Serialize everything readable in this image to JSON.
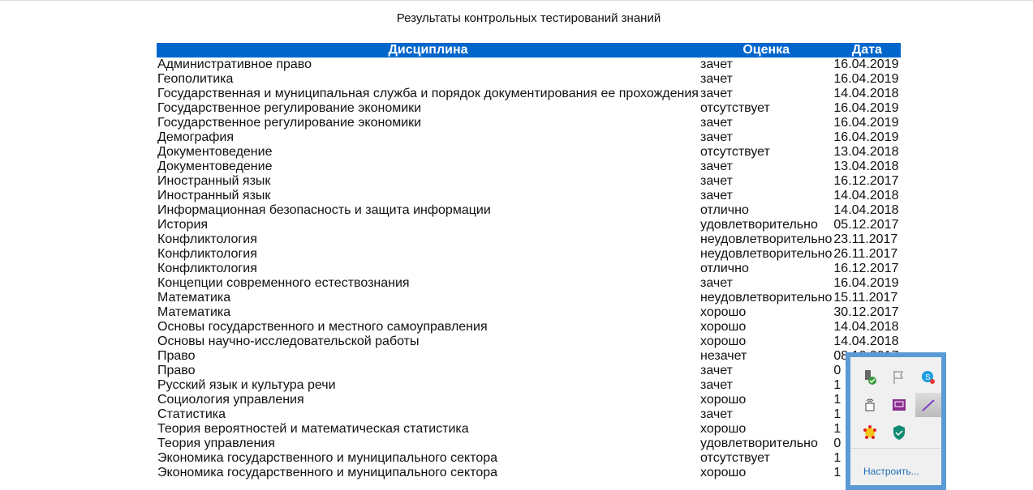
{
  "title": "Результаты контрольных тестирований знаний",
  "headers": [
    "Дисциплина",
    "Оценка",
    "Дата"
  ],
  "header_color": "#0066cc",
  "rows": [
    [
      "Административное право",
      "зачет",
      "16.04.2019"
    ],
    [
      "Геополитика",
      "зачет",
      "16.04.2019"
    ],
    [
      "Государственная и муниципальная служба и порядок документирования ее прохождения",
      "зачет",
      "14.04.2018"
    ],
    [
      "Государственное регулирование экономики",
      "отсутствует",
      "16.04.2019"
    ],
    [
      "Государственное регулирование экономики",
      "зачет",
      "16.04.2019"
    ],
    [
      "Демография",
      "зачет",
      "16.04.2019"
    ],
    [
      "Документоведение",
      "отсутствует",
      "13.04.2018"
    ],
    [
      "Документоведение",
      "зачет",
      "13.04.2018"
    ],
    [
      "Иностранный язык",
      "зачет",
      "16.12.2017"
    ],
    [
      "Иностранный язык",
      "зачет",
      "14.04.2018"
    ],
    [
      "Информационная безопасность и защита информации",
      "отлично",
      "14.04.2018"
    ],
    [
      "История",
      "удовлетворительно",
      "05.12.2017"
    ],
    [
      "Конфликтология",
      "неудовлетворительно",
      "23.11.2017"
    ],
    [
      "Конфликтология",
      "неудовлетворительно",
      "26.11.2017"
    ],
    [
      "Конфликтология",
      "отлично",
      "16.12.2017"
    ],
    [
      "Концепции современного естествознания",
      "зачет",
      "16.04.2019"
    ],
    [
      "Математика",
      "неудовлетворительно",
      "15.11.2017"
    ],
    [
      "Математика",
      "хорошо",
      "30.12.2017"
    ],
    [
      "Основы государственного и местного самоуправления",
      "хорошо",
      "14.04.2018"
    ],
    [
      "Основы научно-исследовательской работы",
      "хорошо",
      "14.04.2018"
    ],
    [
      "Право",
      "незачет",
      "08.12.2017"
    ],
    [
      "Право",
      "зачет",
      "0"
    ],
    [
      "Русский язык и культура речи",
      "зачет",
      "1"
    ],
    [
      "Социология управления",
      "хорошо",
      "1"
    ],
    [
      "Статистика",
      "зачет",
      "1"
    ],
    [
      "Теория вероятностей и математическая статистика",
      "хорошо",
      "1"
    ],
    [
      "Теория управления",
      "удовлетворительно",
      "0"
    ],
    [
      "Экономика государственного и муниципального сектора",
      "отсутствует",
      "1"
    ],
    [
      "Экономика государственного и муниципального сектора",
      "хорошо",
      "1"
    ]
  ],
  "tray": {
    "icons": [
      "usb-safe-remove-icon",
      "action-center-flag-icon",
      "skype-icon",
      "network-printer-icon",
      "presentation-icon",
      "pen-icon",
      "flower-app-icon",
      "security-shield-icon"
    ],
    "customize_label": "Настроить..."
  }
}
